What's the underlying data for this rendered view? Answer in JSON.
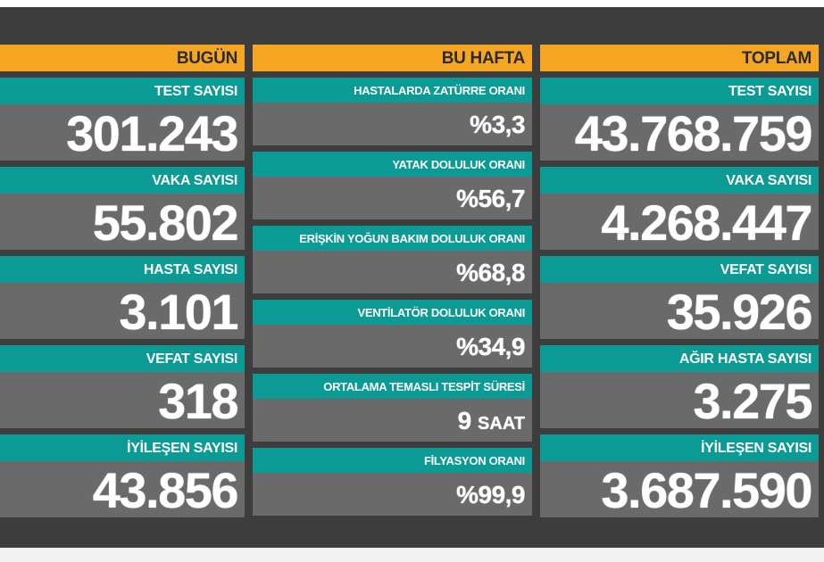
{
  "today": {
    "header": "BUGÜN",
    "stats": [
      {
        "label": "TEST SAYISI",
        "value": "301.243"
      },
      {
        "label": "VAKA SAYISI",
        "value": "55.802"
      },
      {
        "label": "HASTA SAYISI",
        "value": "3.101"
      },
      {
        "label": "VEFAT SAYISI",
        "value": "318"
      },
      {
        "label": "İYİLEŞEN SAYISI",
        "value": "43.856"
      }
    ]
  },
  "week": {
    "header": "BU HAFTA",
    "stats": [
      {
        "label": "HASTALARDA ZATÜRRE ORANI",
        "value": "%3,3"
      },
      {
        "label": "YATAK DOLULUK ORANI",
        "value": "%56,7"
      },
      {
        "label": "ERİŞKİN YOĞUN BAKIM DOLULUK ORANI",
        "value": "%68,8"
      },
      {
        "label": "VENTİLATÖR DOLULUK ORANI",
        "value": "%34,9"
      },
      {
        "label": "ORTALAMA TEMASLI TESPİT SÜRESİ",
        "value": "9",
        "unit": "SAAT"
      },
      {
        "label": "FİLYASYON ORANI",
        "value": "%99,9"
      }
    ]
  },
  "total": {
    "header": "TOPLAM",
    "stats": [
      {
        "label": "TEST SAYISI",
        "value": "43.768.759"
      },
      {
        "label": "VAKA SAYISI",
        "value": "4.268.447"
      },
      {
        "label": "VEFAT SAYISI",
        "value": "35.926"
      },
      {
        "label": "AĞIR HASTA SAYISI",
        "value": "3.275"
      },
      {
        "label": "İYİLEŞEN SAYISI",
        "value": "3.687.590"
      }
    ]
  },
  "colors": {
    "header": "#f5a623",
    "label": "#0b9a94",
    "value_bg": "#6a6a6a",
    "board": "#3d3d3d"
  }
}
